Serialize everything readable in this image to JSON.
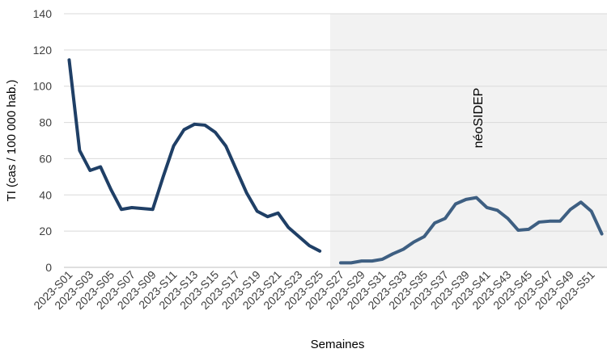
{
  "chart_data": {
    "type": "line",
    "xlabel": "Semaines",
    "ylabel": "TI (cas / 100 000 hab.)",
    "ylim": [
      0,
      140
    ],
    "yticks": [
      0,
      20,
      40,
      60,
      80,
      100,
      120,
      140
    ],
    "grid": true,
    "categories": [
      "2023-S01",
      "2023-S02",
      "2023-S03",
      "2023-S04",
      "2023-S05",
      "2023-S06",
      "2023-S07",
      "2023-S08",
      "2023-S09",
      "2023-S10",
      "2023-S11",
      "2023-S12",
      "2023-S13",
      "2023-S14",
      "2023-S15",
      "2023-S16",
      "2023-S17",
      "2023-S18",
      "2023-S19",
      "2023-S20",
      "2023-S21",
      "2023-S22",
      "2023-S23",
      "2023-S24",
      "2023-S25",
      "2023-S26",
      "2023-S27",
      "2023-S28",
      "2023-S29",
      "2023-S30",
      "2023-S31",
      "2023-S32",
      "2023-S33",
      "2023-S34",
      "2023-S35",
      "2023-S36",
      "2023-S37",
      "2023-S38",
      "2023-S39",
      "2023-S40",
      "2023-S41",
      "2023-S42",
      "2023-S43",
      "2023-S44",
      "2023-S45",
      "2023-S46",
      "2023-S47",
      "2023-S48",
      "2023-S49",
      "2023-S50",
      "2023-S51",
      "2023-S52"
    ],
    "tick_labels": [
      "2023-S01",
      "2023-S03",
      "2023-S05",
      "2023-S07",
      "2023-S09",
      "2023-S11",
      "2023-S13",
      "2023-S15",
      "2023-S17",
      "2023-S19",
      "2023-S21",
      "2023-S23",
      "2023-S25",
      "2023-S27",
      "2023-S29",
      "2023-S31",
      "2023-S33",
      "2023-S35",
      "2023-S37",
      "2023-S39",
      "2023-S41",
      "2023-S43",
      "2023-S45",
      "2023-S47",
      "2023-S49",
      "2023-S51"
    ],
    "series": [
      {
        "color": "#1f3f66",
        "values": [
          114.5,
          64.5,
          53.5,
          55.5,
          43,
          32,
          33,
          32.5,
          32,
          50,
          67,
          76,
          79,
          78.5,
          74.5,
          67,
          54,
          41,
          31,
          28,
          30,
          22,
          17,
          12,
          9,
          null,
          null,
          null,
          null,
          null,
          null,
          null,
          null,
          null,
          null,
          null,
          null,
          null,
          null,
          null,
          null,
          null,
          null,
          null,
          null,
          null,
          null,
          null,
          null,
          null,
          null,
          null
        ]
      },
      {
        "color": "#3e5f82",
        "values": [
          null,
          null,
          null,
          null,
          null,
          null,
          null,
          null,
          null,
          null,
          null,
          null,
          null,
          null,
          null,
          null,
          null,
          null,
          null,
          null,
          null,
          null,
          null,
          null,
          null,
          null,
          2.5,
          2.5,
          3.5,
          3.5,
          4.5,
          7.5,
          10,
          14,
          17,
          24.5,
          27,
          35,
          37.5,
          38.5,
          33,
          31.5,
          27,
          20.5,
          21,
          25,
          25.5,
          25.5,
          32,
          36,
          31,
          18.5
        ]
      }
    ],
    "shaded_region": {
      "from": "2023-S27",
      "to": "2023-S52",
      "color": "#f2f2f2"
    },
    "annotation": {
      "text": "néoSIDEP"
    },
    "colors": {
      "axis": "#bfbfbf",
      "grid": "#d9d9d9",
      "tick_text": "#404040"
    }
  }
}
